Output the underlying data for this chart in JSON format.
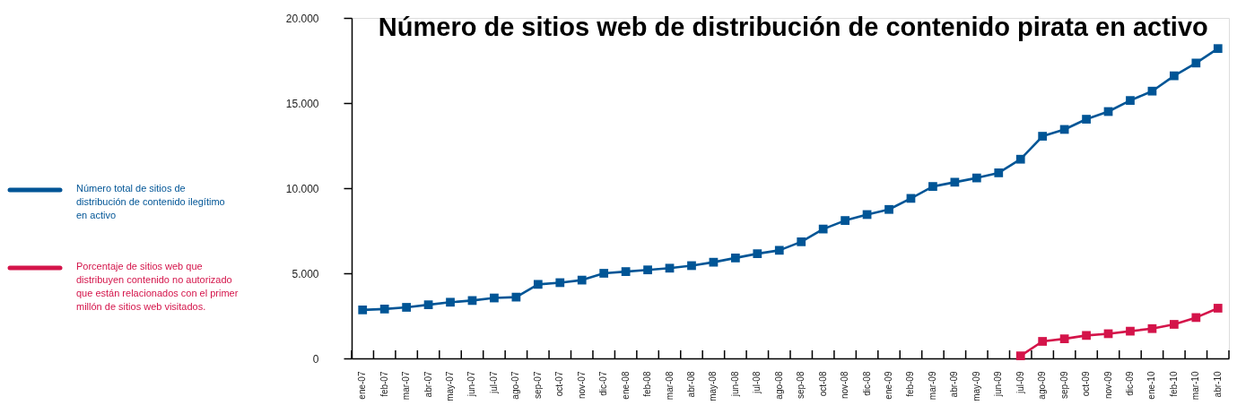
{
  "chart_data": {
    "type": "line",
    "title": "Número de sitios web de distribución de contenido pirata en activo",
    "categories": [
      "ene-07",
      "feb-07",
      "mar-07",
      "abr-07",
      "may-07",
      "jun-07",
      "jul-07",
      "ago-07",
      "sep-07",
      "oct-07",
      "nov-07",
      "dic-07",
      "ene-08",
      "feb-08",
      "mar-08",
      "abr-08",
      "may-08",
      "jun-08",
      "jul-08",
      "ago-08",
      "sep-08",
      "oct-08",
      "nov-08",
      "dic-08",
      "ene-09",
      "feb-09",
      "mar-09",
      "abr-09",
      "may-09",
      "jun-09",
      "jul-09",
      "ago-09",
      "sep-09",
      "oct-09",
      "nov-09",
      "dic-09",
      "ene-10",
      "feb-10",
      "mar-10",
      "abr-10"
    ],
    "series": [
      {
        "name": "Número total de sitios de distribución de contenido ilegítimo en activo",
        "color": "#005596",
        "values": [
          2850,
          2900,
          3000,
          3150,
          3300,
          3400,
          3550,
          3600,
          4350,
          4450,
          4600,
          5000,
          5100,
          5200,
          5300,
          5450,
          5650,
          5900,
          6150,
          6350,
          6850,
          7600,
          8100,
          8450,
          8750,
          9400,
          10100,
          10350,
          10600,
          10900,
          11700,
          13050,
          13450,
          14050,
          14500,
          15150,
          15700,
          16600,
          17350,
          18200
        ]
      },
      {
        "name": "Porcentaje de sitios web que distribuyen contenido no autorizado que están relacionados con el primer millón de sitios web visitados.",
        "color": "#d4144a",
        "values": [
          null,
          null,
          null,
          null,
          null,
          null,
          null,
          null,
          null,
          null,
          null,
          null,
          null,
          null,
          null,
          null,
          null,
          null,
          null,
          null,
          null,
          null,
          null,
          null,
          null,
          null,
          null,
          null,
          null,
          null,
          150,
          1000,
          1150,
          1350,
          1450,
          1600,
          1750,
          2000,
          2400,
          2950
        ]
      }
    ],
    "ylim": [
      0,
      20000
    ],
    "yticks": [
      0,
      {
        "value": 5000,
        "label": "5.000"
      },
      {
        "value": 10000,
        "label": "10.000"
      },
      {
        "value": 15000,
        "label": "15.000"
      },
      {
        "value": 20000,
        "label": "20.000"
      }
    ],
    "legend": "left",
    "marker": "square",
    "line_style": "solid",
    "grid": false
  }
}
